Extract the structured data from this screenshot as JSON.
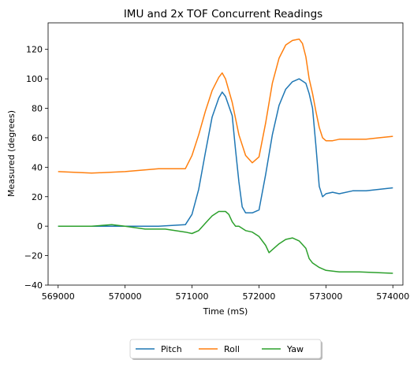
{
  "chart_data": {
    "type": "line",
    "title": "IMU and 2x TOF Concurrent Readings",
    "xlabel": "Time (mS)",
    "ylabel": "Measured (degrees)",
    "xlim": [
      568850,
      574150
    ],
    "ylim": [
      -40,
      138
    ],
    "xticks": [
      569000,
      570000,
      571000,
      572000,
      573000,
      574000
    ],
    "yticks": [
      -40,
      -20,
      0,
      20,
      40,
      60,
      80,
      100,
      120
    ],
    "grid": false,
    "legend_position": "bottom-center",
    "series": [
      {
        "name": "Pitch",
        "color": "#1f77b4",
        "x": [
          569000,
          569500,
          570000,
          570500,
          570900,
          571000,
          571100,
          571200,
          571300,
          571400,
          571450,
          571500,
          571600,
          571650,
          571700,
          571750,
          571800,
          571900,
          572000,
          572100,
          572200,
          572300,
          572400,
          572500,
          572600,
          572700,
          572750,
          572800,
          572850,
          572900,
          572950,
          573000,
          573100,
          573200,
          573400,
          573600,
          573800,
          574000
        ],
        "y": [
          0,
          0,
          0,
          0,
          1,
          8,
          25,
          50,
          74,
          87,
          91,
          88,
          75,
          52,
          30,
          13,
          9,
          9,
          11,
          35,
          62,
          82,
          93,
          98,
          100,
          97,
          90,
          80,
          55,
          27,
          20,
          22,
          23,
          22,
          24,
          24,
          25,
          26
        ]
      },
      {
        "name": "Roll",
        "color": "#ff7f0e",
        "x": [
          569000,
          569500,
          570000,
          570500,
          570900,
          571000,
          571100,
          571200,
          571300,
          571400,
          571450,
          571500,
          571600,
          571700,
          571800,
          571900,
          572000,
          572100,
          572200,
          572300,
          572400,
          572500,
          572600,
          572650,
          572700,
          572750,
          572800,
          572850,
          572900,
          572950,
          573000,
          573100,
          573200,
          573400,
          573600,
          573800,
          574000
        ],
        "y": [
          37,
          36,
          37,
          39,
          39,
          48,
          62,
          78,
          92,
          101,
          104,
          100,
          84,
          62,
          48,
          43,
          47,
          70,
          97,
          114,
          123,
          126,
          127,
          124,
          115,
          100,
          90,
          78,
          67,
          60,
          58,
          58,
          59,
          59,
          59,
          60,
          61
        ]
      },
      {
        "name": "Yaw",
        "color": "#2ca02c",
        "x": [
          569000,
          569500,
          569800,
          570000,
          570300,
          570600,
          570900,
          571000,
          571100,
          571200,
          571300,
          571400,
          571500,
          571550,
          571600,
          571650,
          571700,
          571800,
          571900,
          572000,
          572100,
          572150,
          572200,
          572300,
          572400,
          572500,
          572600,
          572700,
          572750,
          572800,
          572900,
          573000,
          573200,
          573500,
          574000
        ],
        "y": [
          0,
          0,
          1,
          0,
          -2,
          -2,
          -4,
          -5,
          -3,
          2,
          7,
          10,
          10,
          8,
          3,
          0,
          0,
          -3,
          -4,
          -7,
          -13,
          -18,
          -16,
          -12,
          -9,
          -8,
          -10,
          -15,
          -22,
          -25,
          -28,
          -30,
          -31,
          -31,
          -32
        ]
      }
    ]
  }
}
